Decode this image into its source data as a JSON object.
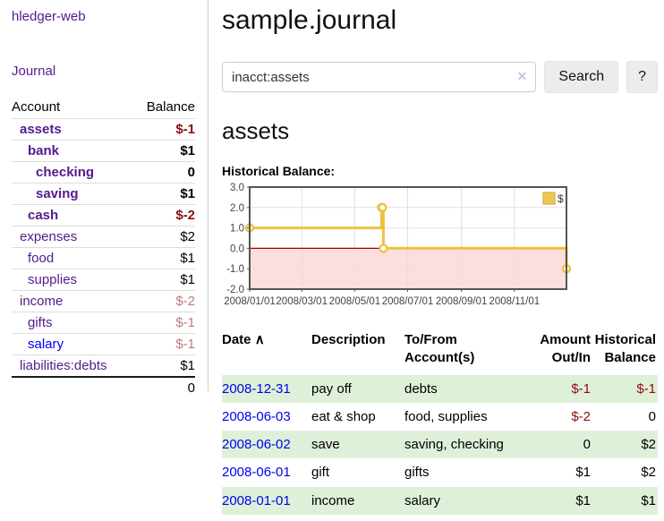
{
  "colors": {
    "purple": "#551a8b",
    "blue": "#0000ee",
    "negative_strong": "#8b0f0f",
    "negative_muted": "#c1787f",
    "row_green": "#dff0d8",
    "series_yellow": "#edc240",
    "zero_line": "#990000",
    "negative_region": "#fcdede",
    "grid": "#e0e0e0",
    "chart_border": "#545454"
  },
  "sidebar": {
    "brand": "hledger-web",
    "journal_link": "Journal",
    "table": {
      "account_header": "Account",
      "balance_header": "Balance",
      "rows": [
        {
          "account": "assets",
          "balance": "$-1",
          "depth": 0,
          "selected": true,
          "tone": "neg",
          "link": "purple"
        },
        {
          "account": "bank",
          "balance": "$1",
          "depth": 1,
          "selected": true,
          "tone": "",
          "link": "purple"
        },
        {
          "account": "checking",
          "balance": "0",
          "depth": 2,
          "selected": true,
          "tone": "",
          "link": "purple"
        },
        {
          "account": "saving",
          "balance": "$1",
          "depth": 2,
          "selected": true,
          "tone": "",
          "link": "purple"
        },
        {
          "account": "cash",
          "balance": "$-2",
          "depth": 1,
          "selected": true,
          "tone": "neg",
          "link": "purple"
        },
        {
          "account": "expenses",
          "balance": "$2",
          "depth": 0,
          "selected": false,
          "tone": "",
          "link": "purple"
        },
        {
          "account": "food",
          "balance": "$1",
          "depth": 1,
          "selected": false,
          "tone": "",
          "link": "purple"
        },
        {
          "account": "supplies",
          "balance": "$1",
          "depth": 1,
          "selected": false,
          "tone": "",
          "link": "purple"
        },
        {
          "account": "income",
          "balance": "$-2",
          "depth": 0,
          "selected": false,
          "tone": "negm",
          "link": "purple"
        },
        {
          "account": "gifts",
          "balance": "$-1",
          "depth": 1,
          "selected": false,
          "tone": "negm",
          "link": "purple"
        },
        {
          "account": "salary",
          "balance": "$-1",
          "depth": 1,
          "selected": false,
          "tone": "negm",
          "link": "blue"
        },
        {
          "account": "liabilities:debts",
          "balance": "$1",
          "depth": 0,
          "selected": false,
          "tone": "",
          "link": "purple"
        }
      ],
      "total": "0"
    }
  },
  "main": {
    "title": "sample.journal",
    "search": {
      "value": "inacct:assets",
      "clear_icon": "✕",
      "search_button": "Search",
      "help_button": "?"
    },
    "account_heading": "assets",
    "chart_label": "Historical Balance:"
  },
  "chart_data": {
    "type": "line",
    "step": true,
    "title": "Historical Balance",
    "series": [
      {
        "name": "$",
        "color": "#edc240",
        "points": [
          [
            "2008-01-01",
            1
          ],
          [
            "2008-06-01",
            2
          ],
          [
            "2008-06-02",
            2
          ],
          [
            "2008-06-03",
            0
          ],
          [
            "2008-12-31",
            -1
          ]
        ]
      }
    ],
    "xlim": [
      "2008-01-01",
      "2008-12-31"
    ],
    "ylim": [
      -2,
      3
    ],
    "x_ticks": [
      "2008/01/01",
      "2008/03/01",
      "2008/05/01",
      "2008/07/01",
      "2008/09/01",
      "2008/11/01"
    ],
    "y_ticks": [
      "3.0",
      "2.0",
      "1.0",
      "0.0",
      "-1.0",
      "-2.0"
    ],
    "grid": true,
    "legend_position": "top-right",
    "legend_label": "$",
    "zero_line": true,
    "negative_region_shaded": true
  },
  "register": {
    "headers": {
      "date": "Date",
      "sort_icon": "∧",
      "description": "Description",
      "accounts": "To/From Account(s)",
      "amount": "Amount Out/In",
      "balance": "Historical Balance"
    },
    "rows": [
      {
        "date": "2008-12-31",
        "description": "pay off",
        "accounts": "debts",
        "amount": "$-1",
        "amount_negative": true,
        "balance": "$-1",
        "balance_negative": true
      },
      {
        "date": "2008-06-03",
        "description": "eat & shop",
        "accounts": "food, supplies",
        "amount": "$-2",
        "amount_negative": true,
        "balance": "0",
        "balance_negative": false
      },
      {
        "date": "2008-06-02",
        "description": "save",
        "accounts": "saving, checking",
        "amount": "0",
        "amount_negative": false,
        "balance": "$2",
        "balance_negative": false
      },
      {
        "date": "2008-06-01",
        "description": "gift",
        "accounts": "gifts",
        "amount": "$1",
        "amount_negative": false,
        "balance": "$2",
        "balance_negative": false
      },
      {
        "date": "2008-01-01",
        "description": "income",
        "accounts": "salary",
        "amount": "$1",
        "amount_negative": false,
        "balance": "$1",
        "balance_negative": false
      }
    ]
  }
}
